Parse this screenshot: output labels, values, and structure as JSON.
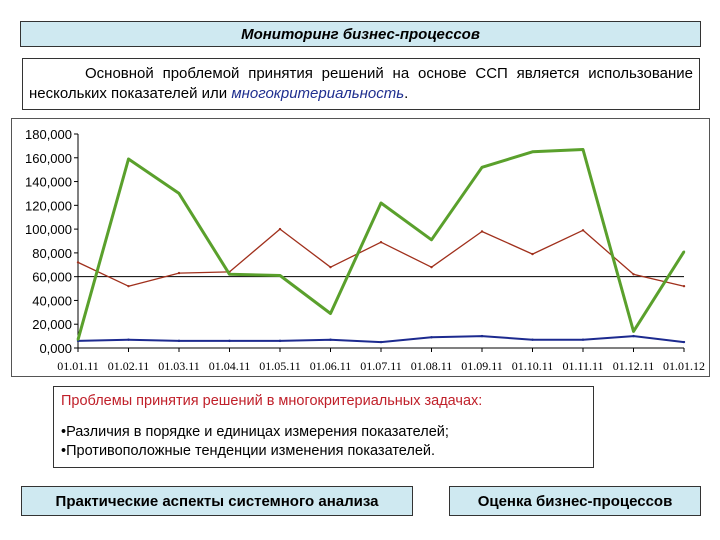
{
  "header": {
    "title": "Мониторинг бизнес-процессов"
  },
  "intro": {
    "text_before": "Основной проблемой принятия решений на основе ССП является использование нескольких показателей или ",
    "highlight": "многокритериальность",
    "text_after": "."
  },
  "problems": {
    "title": "Проблемы принятия решений в многокритериальных задачах:",
    "items": [
      "•Различия в порядке и единицах измерения показателей;",
      "•Противоположные тенденции изменения показателей."
    ]
  },
  "footer": {
    "left": "Практические аспекты системного анализа",
    "right": "Оценка бизнес-процессов"
  },
  "chart_data": {
    "type": "line",
    "y_ticks": [
      "0,000",
      "20,000",
      "40,000",
      "60,000",
      "80,000",
      "100,000",
      "120,000",
      "140,000",
      "160,000",
      "180,000"
    ],
    "ylim": [
      0,
      180000
    ],
    "categories": [
      "01.01.11",
      "01.02.11",
      "01.03.11",
      "01.04.11",
      "01.05.11",
      "01.06.11",
      "01.07.11",
      "01.08.11",
      "01.09.11",
      "01.10.11",
      "01.11.11",
      "01.12.11",
      "01.01.12"
    ],
    "grid": "horizontal",
    "series": [
      {
        "color": "#5aa02c",
        "values": [
          7000,
          159000,
          130000,
          62000,
          61000,
          29000,
          122000,
          91000,
          152000,
          165000,
          167000,
          14000,
          81000
        ]
      },
      {
        "color": "#a0301c",
        "values": [
          72000,
          52000,
          63000,
          64000,
          100000,
          68000,
          89000,
          68000,
          98000,
          79000,
          99000,
          62000,
          52000
        ]
      },
      {
        "color": "#1c2a8f",
        "values": [
          6000,
          7000,
          6000,
          6000,
          6000,
          7000,
          5000,
          9000,
          10000,
          7000,
          7000,
          10000,
          5000
        ]
      }
    ]
  }
}
